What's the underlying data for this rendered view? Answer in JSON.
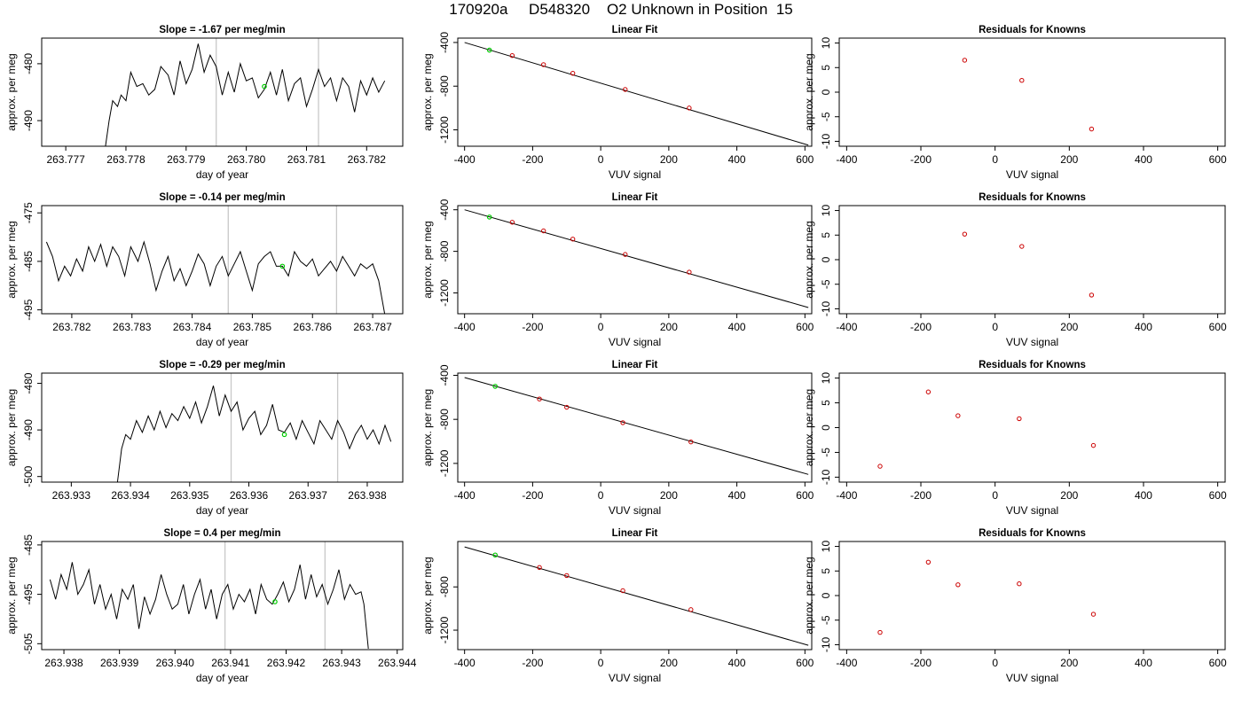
{
  "page_title": "170920a     D548320    O2 Unknown in Position  15",
  "chart_data": [
    {
      "panel": "timeseries-1",
      "type": "line",
      "title": "Slope =  -1.67  per meg/min",
      "xlabel": "day of year",
      "ylabel": "approx. per meg",
      "xlim": [
        263.7766,
        263.7826
      ],
      "ylim": [
        -494.5,
        -475.5
      ],
      "xticks": [
        263.777,
        263.778,
        263.779,
        263.78,
        263.781,
        263.782
      ],
      "xtick_labels": [
        "263.777",
        "263.778",
        "263.779",
        "263.780",
        "263.781",
        "263.782"
      ],
      "yticks": [
        -480,
        -490
      ],
      "ytick_labels": [
        "-480",
        "-490"
      ],
      "vlines": [
        263.7795,
        263.7812
      ],
      "highlight_point": {
        "x": 263.7803,
        "y": -484.0
      },
      "x": [
        263.77766,
        263.77772,
        263.77778,
        263.77786,
        263.77792,
        263.778,
        263.77808,
        263.77818,
        263.77828,
        263.77838,
        263.77848,
        263.77858,
        263.7787,
        263.7788,
        263.7789,
        263.779,
        263.7791,
        263.7792,
        263.7793,
        263.7794,
        263.7795,
        263.7796,
        263.7797,
        263.7798,
        263.7799,
        263.78,
        263.7801,
        263.7802,
        263.7803,
        263.7804,
        263.7805,
        263.7806,
        263.7807,
        263.7808,
        263.7809,
        263.781,
        263.7811,
        263.7812,
        263.7813,
        263.7814,
        263.7815,
        263.7816,
        263.7817,
        263.7818,
        263.7819,
        263.782,
        263.7821,
        263.7822,
        263.7823
      ],
      "y": [
        -494.5,
        -490,
        -486.5,
        -487.5,
        -485.5,
        -486.5,
        -481.5,
        -484,
        -483.5,
        -485.5,
        -484.5,
        -480.5,
        -482,
        -485.5,
        -479.5,
        -483.5,
        -481,
        -476.5,
        -481.5,
        -478.5,
        -480.5,
        -485.5,
        -481.5,
        -485,
        -480,
        -483,
        -482.5,
        -486,
        -484.5,
        -481.5,
        -485.5,
        -481,
        -486.5,
        -483.5,
        -482.5,
        -487.5,
        -484.5,
        -481,
        -484,
        -482.5,
        -486.5,
        -482.5,
        -484,
        -488.5,
        -483,
        -485.5,
        -482.5,
        -485,
        -483
      ]
    },
    {
      "panel": "linearfit-1",
      "type": "scatter",
      "title": "Linear Fit",
      "xlabel": "VUV signal",
      "ylabel": "approx. per meg",
      "xlim": [
        -420,
        620
      ],
      "ylim": [
        -1350,
        -360
      ],
      "xticks": [
        -400,
        -200,
        0,
        200,
        400,
        600
      ],
      "xtick_labels": [
        "-400",
        "-200",
        "0",
        "200",
        "400",
        "600"
      ],
      "yticks": [
        -400,
        -800,
        -1200
      ],
      "ytick_labels": [
        "-400",
        "-800",
        "-1200"
      ],
      "fit_line": {
        "x": [
          -400,
          610
        ],
        "y": [
          -400,
          -1340
        ]
      },
      "highlight_point": {
        "x": -327,
        "y": -470
      },
      "points": {
        "x": [
          -260,
          -168,
          -82,
          72,
          260
        ],
        "y": [
          -520,
          -603,
          -682,
          -830,
          -1000
        ]
      }
    },
    {
      "panel": "residuals-1",
      "type": "scatter",
      "title": "Residuals for Knowns",
      "xlabel": "VUV signal",
      "ylabel": "approx. per meg",
      "xlim": [
        -420,
        620
      ],
      "ylim": [
        -11,
        11
      ],
      "xticks": [
        -400,
        -200,
        0,
        200,
        400,
        600
      ],
      "xtick_labels": [
        "-400",
        "-200",
        "0",
        "200",
        "400",
        "600"
      ],
      "yticks": [
        10,
        5,
        0,
        -5,
        -10
      ],
      "ytick_labels": [
        "10",
        "5",
        "0",
        "-5",
        "-10"
      ],
      "points": {
        "x": [
          -82,
          72,
          260
        ],
        "y": [
          6.5,
          2.4,
          -7.5
        ]
      }
    },
    {
      "panel": "timeseries-2",
      "type": "line",
      "title": "Slope =  -0.14  per meg/min",
      "xlabel": "day of year",
      "ylabel": "approx. per meg",
      "xlim": [
        263.7815,
        263.7875
      ],
      "ylim": [
        -495.8,
        -473.5
      ],
      "xticks": [
        263.782,
        263.783,
        263.784,
        263.785,
        263.786,
        263.787
      ],
      "xtick_labels": [
        "263.782",
        "263.783",
        "263.784",
        "263.785",
        "263.786",
        "263.787"
      ],
      "yticks": [
        -475,
        -485,
        -495
      ],
      "ytick_labels": [
        "-475",
        "-485",
        "-495"
      ],
      "vlines": [
        263.7846,
        263.7864
      ],
      "highlight_point": {
        "x": 263.7855,
        "y": -486.0
      },
      "x": [
        263.78158,
        263.78168,
        263.78178,
        263.78188,
        263.78198,
        263.78208,
        263.78218,
        263.78228,
        263.78238,
        263.78248,
        263.78258,
        263.78268,
        263.78278,
        263.78288,
        263.78298,
        263.7831,
        263.7832,
        263.7833,
        263.7834,
        263.7835,
        263.7836,
        263.7837,
        263.7838,
        263.7839,
        263.784,
        263.7841,
        263.7842,
        263.7843,
        263.7844,
        263.7845,
        263.7846,
        263.7847,
        263.7848,
        263.7849,
        263.785,
        263.7851,
        263.7852,
        263.7853,
        263.7854,
        263.7855,
        263.7856,
        263.7857,
        263.7858,
        263.7859,
        263.786,
        263.7861,
        263.7862,
        263.7863,
        263.7864,
        263.7865,
        263.7866,
        263.7867,
        263.7868,
        263.7869,
        263.787,
        263.7871,
        263.7872
      ],
      "y": [
        -481,
        -484,
        -489,
        -486,
        -488,
        -484.5,
        -487,
        -482,
        -485,
        -481.5,
        -486,
        -482,
        -484,
        -488,
        -482,
        -485,
        -481,
        -485.5,
        -491,
        -487,
        -484,
        -489,
        -486.5,
        -490,
        -487,
        -483.5,
        -485.5,
        -490,
        -486,
        -484,
        -488,
        -485.5,
        -483,
        -487,
        -491,
        -485.5,
        -484,
        -483,
        -486,
        -486,
        -488,
        -483,
        -485,
        -486,
        -484.5,
        -488,
        -486.5,
        -485,
        -487,
        -484,
        -486,
        -488,
        -485.5,
        -486.5,
        -485.5,
        -489,
        -496
      ]
    },
    {
      "panel": "linearfit-2",
      "type": "scatter",
      "title": "Linear Fit",
      "xlabel": "VUV signal",
      "ylabel": "approx. per meg",
      "xlim": [
        -420,
        620
      ],
      "ylim": [
        -1400,
        -360
      ],
      "xticks": [
        -400,
        -200,
        0,
        200,
        400,
        600
      ],
      "xtick_labels": [
        "-400",
        "-200",
        "0",
        "200",
        "400",
        "600"
      ],
      "yticks": [
        -400,
        -800,
        -1200
      ],
      "ytick_labels": [
        "-400",
        "-800",
        "-1200"
      ],
      "fit_line": {
        "x": [
          -400,
          610
        ],
        "y": [
          -400,
          -1340
        ]
      },
      "highlight_point": {
        "x": -327,
        "y": -470
      },
      "points": {
        "x": [
          -260,
          -168,
          -82,
          72,
          260
        ],
        "y": [
          -520,
          -603,
          -682,
          -830,
          -1000
        ]
      }
    },
    {
      "panel": "residuals-2",
      "type": "scatter",
      "title": "Residuals for Knowns",
      "xlabel": "VUV signal",
      "ylabel": "approx. per meg",
      "xlim": [
        -420,
        620
      ],
      "ylim": [
        -11,
        11
      ],
      "xticks": [
        -400,
        -200,
        0,
        200,
        400,
        600
      ],
      "xtick_labels": [
        "-400",
        "-200",
        "0",
        "200",
        "400",
        "600"
      ],
      "yticks": [
        10,
        5,
        0,
        -5,
        -10
      ],
      "ytick_labels": [
        "10",
        "5",
        "0",
        "-5",
        "-10"
      ],
      "points": {
        "x": [
          -82,
          72,
          260
        ],
        "y": [
          5.2,
          2.7,
          -7.2
        ]
      }
    },
    {
      "panel": "timeseries-3",
      "type": "line",
      "title": "Slope =  -0.29  per meg/min",
      "xlabel": "day of year",
      "ylabel": "approx. per meg",
      "xlim": [
        263.9325,
        263.9386
      ],
      "ylim": [
        -501.2,
        -477.8
      ],
      "xticks": [
        263.933,
        263.934,
        263.935,
        263.936,
        263.937,
        263.938
      ],
      "xtick_labels": [
        "263.933",
        "263.934",
        "263.935",
        "263.936",
        "263.937",
        "263.938"
      ],
      "yticks": [
        -480,
        -490,
        -500
      ],
      "ytick_labels": [
        "-480",
        "-490",
        "-500"
      ],
      "vlines": [
        263.9357,
        263.9375
      ],
      "highlight_point": {
        "x": 263.9366,
        "y": -491.0
      },
      "x": [
        263.93378,
        263.93385,
        263.93392,
        263.934,
        263.9341,
        263.9342,
        263.9343,
        263.9344,
        263.9345,
        263.9346,
        263.9347,
        263.9348,
        263.9349,
        263.935,
        263.9351,
        263.9352,
        263.9353,
        263.9354,
        263.9355,
        263.9356,
        263.9357,
        263.9358,
        263.9359,
        263.936,
        263.9361,
        263.9362,
        263.9363,
        263.9364,
        263.9365,
        263.9366,
        263.9367,
        263.9368,
        263.9369,
        263.937,
        263.9371,
        263.9372,
        263.9373,
        263.9374,
        263.9375,
        263.9376,
        263.9377,
        263.9378,
        263.9379,
        263.938,
        263.9381,
        263.9382,
        263.9383,
        263.9384
      ],
      "y": [
        -501.2,
        -494,
        -491,
        -492,
        -488,
        -490.5,
        -487,
        -490,
        -486,
        -489.5,
        -486.5,
        -488,
        -485,
        -487.5,
        -484,
        -488.5,
        -485,
        -480.5,
        -487,
        -482.5,
        -486,
        -484,
        -490,
        -487.5,
        -486,
        -491,
        -489,
        -484.5,
        -490,
        -490.5,
        -488.5,
        -492,
        -488,
        -490.5,
        -493,
        -488,
        -490,
        -492,
        -488,
        -490.5,
        -494,
        -491,
        -489,
        -492,
        -490,
        -493,
        -489,
        -492.5
      ]
    },
    {
      "panel": "linearfit-3",
      "type": "scatter",
      "title": "Linear Fit",
      "xlabel": "VUV signal",
      "ylabel": "approx. per meg",
      "xlim": [
        -420,
        620
      ],
      "ylim": [
        -1370,
        -380
      ],
      "xticks": [
        -400,
        -200,
        0,
        200,
        400,
        600
      ],
      "xtick_labels": [
        "-400",
        "-200",
        "0",
        "200",
        "400",
        "600"
      ],
      "yticks": [
        -400,
        -800,
        -1200
      ],
      "ytick_labels": [
        "-400",
        "-800",
        "-1200"
      ],
      "fit_line": {
        "x": [
          -400,
          610
        ],
        "y": [
          -420,
          -1300
        ]
      },
      "highlight_point": {
        "x": -310,
        "y": -500
      },
      "points": {
        "x": [
          -180,
          -100,
          65,
          265
        ],
        "y": [
          -615,
          -690,
          -830,
          -1005
        ]
      }
    },
    {
      "panel": "residuals-3",
      "type": "scatter",
      "title": "Residuals for Knowns",
      "xlabel": "VUV signal",
      "ylabel": "approx. per meg",
      "xlim": [
        -420,
        620
      ],
      "ylim": [
        -11,
        11
      ],
      "xticks": [
        -400,
        -200,
        0,
        200,
        400,
        600
      ],
      "xtick_labels": [
        "-400",
        "-200",
        "0",
        "200",
        "400",
        "600"
      ],
      "yticks": [
        10,
        5,
        0,
        -5,
        -10
      ],
      "ytick_labels": [
        "10",
        "5",
        "0",
        "-5",
        "-10"
      ],
      "points": {
        "x": [
          -310,
          -180,
          -100,
          65,
          265
        ],
        "y": [
          -7.8,
          7.2,
          2.4,
          1.8,
          -3.6
        ]
      }
    },
    {
      "panel": "timeseries-4",
      "type": "line",
      "title": "Slope =  0.4  per meg/min",
      "xlabel": "day of year",
      "ylabel": "approx. per meg",
      "xlim": [
        263.9376,
        263.9441
      ],
      "ylim": [
        -506.2,
        -484.3
      ],
      "xticks": [
        263.938,
        263.939,
        263.94,
        263.941,
        263.942,
        263.943,
        263.944
      ],
      "xtick_labels": [
        "263.938",
        "263.939",
        "263.940",
        "263.941",
        "263.942",
        "263.943",
        "263.944"
      ],
      "yticks": [
        -485,
        -495,
        -505
      ],
      "ytick_labels": [
        "-485",
        "-495",
        "-505"
      ],
      "vlines": [
        263.9409,
        263.9427
      ],
      "highlight_point": {
        "x": 263.9418,
        "y": -496.5
      },
      "x": [
        263.93775,
        263.93785,
        263.93795,
        263.93805,
        263.93815,
        263.93825,
        263.93835,
        263.93845,
        263.93855,
        263.93865,
        263.93875,
        263.93885,
        263.93895,
        263.93905,
        263.93915,
        263.93925,
        263.93935,
        263.93945,
        263.93955,
        263.93965,
        263.93975,
        263.93985,
        263.93995,
        263.94005,
        263.94015,
        263.94025,
        263.94035,
        263.94045,
        263.94055,
        263.94065,
        263.94075,
        263.94085,
        263.94095,
        263.94105,
        263.94115,
        263.94125,
        263.94135,
        263.94145,
        263.94155,
        263.94165,
        263.94175,
        263.94185,
        263.94195,
        263.94205,
        263.94215,
        263.94225,
        263.94235,
        263.94245,
        263.94255,
        263.94265,
        263.94275,
        263.94285,
        263.94295,
        263.94305,
        263.94315,
        263.94325,
        263.94335,
        263.9434,
        263.94348
      ],
      "y": [
        -492,
        -496,
        -491,
        -494,
        -488.5,
        -495,
        -493,
        -490,
        -497,
        -493,
        -498,
        -495,
        -500,
        -494,
        -496,
        -493,
        -502,
        -495.5,
        -499,
        -496,
        -491,
        -495,
        -498,
        -497,
        -493,
        -499,
        -495,
        -492,
        -498,
        -494,
        -500,
        -495,
        -493,
        -498,
        -495,
        -496.5,
        -494,
        -499,
        -493,
        -496,
        -497,
        -495,
        -492.5,
        -496.5,
        -494,
        -489,
        -496,
        -491,
        -495.5,
        -493,
        -497,
        -494,
        -490,
        -496,
        -493,
        -495,
        -494.5,
        -497,
        -506
      ]
    },
    {
      "panel": "linearfit-4",
      "type": "scatter",
      "title": "Linear Fit",
      "xlabel": "VUV signal",
      "ylabel": "approx. per meg",
      "xlim": [
        -420,
        620
      ],
      "ylim": [
        -1380,
        -380
      ],
      "xticks": [
        -400,
        -200,
        0,
        200,
        400,
        600
      ],
      "xtick_labels": [
        "-400",
        "-200",
        "0",
        "200",
        "400",
        "600"
      ],
      "yticks": [
        -800,
        -1200
      ],
      "ytick_labels": [
        "-800",
        "-1200"
      ],
      "fit_line": {
        "x": [
          -400,
          610
        ],
        "y": [
          -430,
          -1340
        ]
      },
      "highlight_point": {
        "x": -310,
        "y": -505
      },
      "points": {
        "x": [
          -180,
          -100,
          65,
          265
        ],
        "y": [
          -620,
          -695,
          -835,
          -1010
        ]
      }
    },
    {
      "panel": "residuals-4",
      "type": "scatter",
      "title": "Residuals for Knowns",
      "xlabel": "VUV signal",
      "ylabel": "approx. per meg",
      "xlim": [
        -420,
        620
      ],
      "ylim": [
        -11,
        11
      ],
      "xticks": [
        -400,
        -200,
        0,
        200,
        400,
        600
      ],
      "xtick_labels": [
        "-400",
        "-200",
        "0",
        "200",
        "400",
        "600"
      ],
      "yticks": [
        10,
        5,
        0,
        -5,
        -10
      ],
      "ytick_labels": [
        "10",
        "5",
        "0",
        "-5",
        "-10"
      ],
      "points": {
        "x": [
          -310,
          -180,
          -100,
          65,
          265
        ],
        "y": [
          -7.5,
          6.8,
          2.2,
          2.4,
          -3.8
        ]
      }
    }
  ],
  "colors": {
    "series_line": "#000000",
    "known_point": "#cc0000",
    "unknown_point": "#00cc00",
    "vline": "#c8c8c8",
    "axes": "#000000"
  }
}
